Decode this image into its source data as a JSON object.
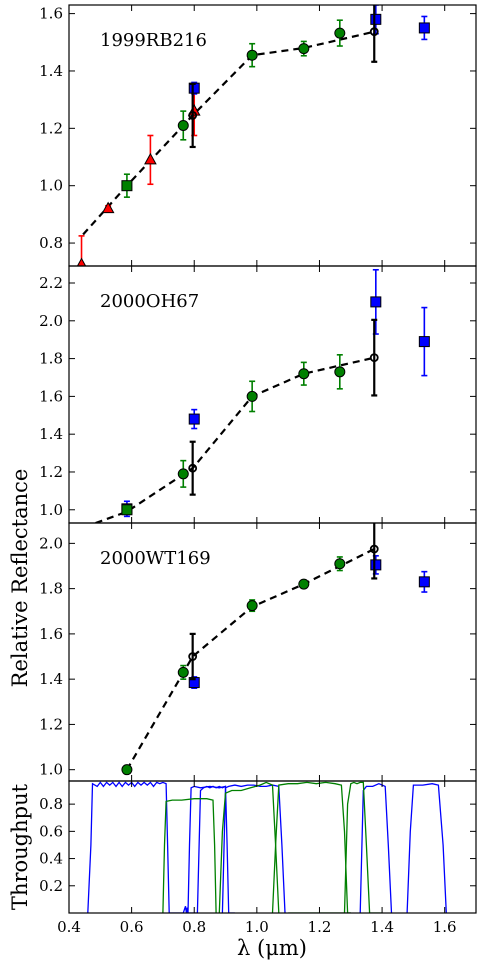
{
  "figure": {
    "ylabel_shared": "Relative Reflectance",
    "xlabel": "λ (μm)"
  },
  "chart_data": [
    {
      "type": "scatter",
      "label": "1999RB216",
      "xlim": [
        0.4,
        1.7
      ],
      "ylim": [
        0.72,
        1.63
      ],
      "yticks": [
        0.8,
        1.0,
        1.2,
        1.4,
        1.6
      ],
      "ytick_labels": [
        "0.8",
        "1.0",
        "1.2",
        "1.4",
        "1.6"
      ],
      "dashed_line": {
        "x": [
          0.445,
          0.585,
          0.795,
          0.985,
          1.15,
          1.375
        ],
        "y": [
          0.83,
          1.0,
          1.245,
          1.455,
          1.48,
          1.537
        ]
      },
      "groups": [
        {
          "marker": "triangle",
          "color": "#ff0000",
          "errcolor": "#ff0000",
          "x": [
            0.44,
            0.525,
            0.66,
            0.8
          ],
          "y": [
            0.725,
            0.92,
            1.09,
            1.26
          ],
          "err": [
            0.1,
            0.01,
            0.085,
            0.085
          ]
        },
        {
          "marker": "square",
          "color": "#008000",
          "errcolor": "#008000",
          "x": [
            0.585
          ],
          "y": [
            1.0
          ],
          "err": [
            0.04
          ]
        },
        {
          "marker": "circle",
          "color": "#008000",
          "errcolor": "#008000",
          "x": [
            0.765,
            0.985,
            1.15,
            1.265
          ],
          "y": [
            1.21,
            1.455,
            1.478,
            1.532
          ],
          "err": [
            0.05,
            0.04,
            0.025,
            0.045
          ]
        },
        {
          "marker": "square",
          "color": "#0000ff",
          "errcolor": "#0000ff",
          "x": [
            0.8,
            1.38,
            1.535
          ],
          "y": [
            1.34,
            1.58,
            1.55
          ],
          "err": [
            0.02,
            0.05,
            0.04
          ]
        },
        {
          "marker": "open-circle",
          "color": "#000000",
          "errcolor": "#000000",
          "x": [
            0.795,
            1.375
          ],
          "y": [
            1.245,
            1.537
          ],
          "err": [
            0.11,
            0.105
          ]
        }
      ]
    },
    {
      "type": "scatter",
      "label": "2000OH67",
      "xlim": [
        0.4,
        1.7
      ],
      "ylim": [
        0.93,
        2.29
      ],
      "yticks": [
        1.0,
        1.2,
        1.4,
        1.6,
        1.8,
        2.0,
        2.2
      ],
      "ytick_labels": [
        "1.0",
        "1.2",
        "1.4",
        "1.6",
        "1.8",
        "2.0",
        "2.2"
      ],
      "dashed_line": {
        "x": [
          0.485,
          0.585,
          0.795,
          0.985,
          1.15,
          1.375
        ],
        "y": [
          0.93,
          0.99,
          1.22,
          1.6,
          1.72,
          1.805
        ]
      },
      "groups": [
        {
          "marker": "square",
          "color": "#0000ff",
          "errcolor": "#0000ff",
          "x": [
            0.585
          ],
          "y": [
            1.005
          ],
          "err": [
            0.04
          ]
        },
        {
          "marker": "square",
          "color": "#008000",
          "errcolor": "#008000",
          "x": [
            0.585
          ],
          "y": [
            1.0
          ],
          "err": [
            0.02
          ]
        },
        {
          "marker": "circle",
          "color": "#008000",
          "errcolor": "#008000",
          "x": [
            0.765,
            0.985,
            1.15,
            1.265
          ],
          "y": [
            1.19,
            1.6,
            1.72,
            1.73
          ],
          "err": [
            0.07,
            0.08,
            0.06,
            0.09
          ]
        },
        {
          "marker": "square",
          "color": "#0000ff",
          "errcolor": "#0000ff",
          "x": [
            0.8,
            1.38,
            1.535
          ],
          "y": [
            1.48,
            2.1,
            1.89
          ],
          "err": [
            0.05,
            0.17,
            0.18
          ]
        },
        {
          "marker": "open-circle",
          "color": "#000000",
          "errcolor": "#000000",
          "x": [
            0.795,
            1.375
          ],
          "y": [
            1.22,
            1.805
          ],
          "err": [
            0.14,
            0.2
          ]
        }
      ]
    },
    {
      "type": "scatter",
      "label": "2000WT169",
      "xlim": [
        0.4,
        1.7
      ],
      "ylim": [
        0.95,
        2.09
      ],
      "yticks": [
        1.0,
        1.2,
        1.4,
        1.6,
        1.8,
        2.0
      ],
      "ytick_labels": [
        "1.0",
        "1.2",
        "1.4",
        "1.6",
        "1.8",
        "2.0"
      ],
      "dashed_line": {
        "x": [
          0.585,
          0.795,
          0.985,
          1.15,
          1.375
        ],
        "y": [
          1.0,
          1.5,
          1.72,
          1.82,
          1.975
        ]
      },
      "groups": [
        {
          "marker": "circle",
          "color": "#008000",
          "errcolor": "#008000",
          "x": [
            0.585,
            0.765,
            0.985,
            1.15,
            1.265
          ],
          "y": [
            1.0,
            1.43,
            1.725,
            1.82,
            1.91
          ],
          "err": [
            0.015,
            0.03,
            0.025,
            0.015,
            0.03
          ]
        },
        {
          "marker": "square",
          "color": "#0000ff",
          "errcolor": "#0000ff",
          "x": [
            0.8,
            1.38,
            1.535
          ],
          "y": [
            1.385,
            1.905,
            1.83
          ],
          "err": [
            0.025,
            0.04,
            0.045
          ]
        },
        {
          "marker": "open-circle",
          "color": "#000000",
          "errcolor": "#000000",
          "x": [
            0.795,
            1.375
          ],
          "y": [
            1.5,
            1.975
          ],
          "err": [
            0.1,
            0.13
          ]
        }
      ]
    },
    {
      "type": "line",
      "ylabel": "Throughput",
      "xlim": [
        0.4,
        1.7
      ],
      "ylim": [
        0.0,
        0.97
      ],
      "xticks": [
        0.4,
        0.6,
        0.8,
        1.0,
        1.2,
        1.4,
        1.6
      ],
      "xtick_labels": [
        "0.4",
        "0.6",
        "0.8",
        "1.0",
        "1.2",
        "1.4",
        "1.6"
      ],
      "yticks": [
        0.2,
        0.4,
        0.6,
        0.8
      ],
      "ytick_labels": [
        "0.2",
        "0.4",
        "0.6",
        "0.8"
      ],
      "series": [
        {
          "color": "#0000ff",
          "x": [
            0.46,
            0.47,
            0.475,
            0.49,
            0.5,
            0.51,
            0.52,
            0.53,
            0.54,
            0.55,
            0.56,
            0.57,
            0.58,
            0.59,
            0.6,
            0.61,
            0.62,
            0.63,
            0.64,
            0.65,
            0.66,
            0.67,
            0.68,
            0.69,
            0.7,
            0.71,
            0.715,
            0.72,
            0.73,
            0.74,
            0.75,
            0.765,
            0.772,
            0.775,
            0.778,
            0.78,
            0.79,
            0.8,
            0.81,
            0.82,
            0.83,
            0.84,
            0.85,
            0.86,
            0.87,
            0.88,
            0.89,
            0.9,
            0.905,
            0.91,
            0.92,
            0.93
          ],
          "y": [
            0.0,
            0.5,
            0.95,
            0.93,
            0.96,
            0.93,
            0.96,
            0.94,
            0.96,
            0.93,
            0.96,
            0.93,
            0.96,
            0.94,
            0.96,
            0.93,
            0.96,
            0.94,
            0.96,
            0.94,
            0.96,
            0.93,
            0.96,
            0.95,
            0.96,
            0.95,
            0.5,
            0.0,
            0.0,
            0.0,
            0.0,
            0.0,
            0.05,
            0.0,
            0.04,
            0.0,
            0.0,
            0.0,
            0.0,
            0.9,
            0.92,
            0.93,
            0.92,
            0.93,
            0.92,
            0.93,
            0.92,
            0.93,
            0.5,
            0.0,
            0.0,
            0.0
          ]
        },
        {
          "color": "#0000ff",
          "x": [
            0.78,
            0.785,
            0.79,
            0.8,
            0.82,
            0.85,
            0.88,
            0.9
          ],
          "y": [
            0.0,
            0.5,
            0.92,
            0.93,
            0.92,
            0.93,
            0.92,
            0.93
          ]
        },
        {
          "color": "#0000ff",
          "x": [
            0.89,
            0.9,
            0.91,
            0.93,
            0.95,
            0.97,
            0.99,
            1.01,
            1.03,
            1.05,
            1.07,
            1.08,
            1.09
          ],
          "y": [
            0.0,
            0.92,
            0.93,
            0.94,
            0.93,
            0.94,
            0.94,
            0.93,
            0.93,
            0.94,
            0.93,
            0.5,
            0.0
          ]
        },
        {
          "color": "#0000ff",
          "x": [
            1.33,
            1.34,
            1.35,
            1.37,
            1.39,
            1.41,
            1.42,
            1.43
          ],
          "y": [
            0.0,
            0.9,
            0.93,
            0.93,
            0.95,
            0.93,
            0.5,
            0.0
          ]
        },
        {
          "color": "#0000ff",
          "x": [
            1.48,
            1.49,
            1.5,
            1.53,
            1.56,
            1.58,
            1.595,
            1.605
          ],
          "y": [
            0.0,
            0.6,
            0.94,
            0.94,
            0.95,
            0.94,
            0.5,
            0.0
          ]
        },
        {
          "color": "#008000",
          "x": [
            0.7,
            0.705,
            0.71,
            0.73,
            0.76,
            0.8,
            0.84,
            0.86,
            0.865,
            0.87
          ],
          "y": [
            0.0,
            0.5,
            0.82,
            0.83,
            0.83,
            0.84,
            0.84,
            0.83,
            0.5,
            0.0
          ]
        },
        {
          "color": "#008000",
          "x": [
            0.88,
            0.89,
            0.9,
            0.92,
            0.95,
            0.98,
            1.01,
            1.03,
            1.05,
            1.06,
            1.07
          ],
          "y": [
            0.0,
            0.6,
            0.88,
            0.9,
            0.9,
            0.92,
            0.94,
            0.96,
            0.94,
            0.5,
            0.0
          ]
        },
        {
          "color": "#008000",
          "x": [
            1.05,
            1.06,
            1.07,
            1.1,
            1.13,
            1.16,
            1.19,
            1.22,
            1.25,
            1.27,
            1.28,
            1.29,
            1.3
          ],
          "y": [
            0.0,
            0.5,
            0.94,
            0.95,
            0.95,
            0.96,
            0.95,
            0.96,
            0.95,
            0.94,
            0.6,
            0.0,
            0.0
          ]
        },
        {
          "color": "#008000",
          "x": [
            1.28,
            1.29,
            1.3,
            1.31,
            1.32,
            1.33,
            1.34,
            1.35,
            1.36,
            1.37,
            1.38,
            1.39,
            1.4
          ],
          "y": [
            0.0,
            0.8,
            0.95,
            0.96,
            0.95,
            0.96,
            0.96,
            0.5,
            0.0,
            0.0,
            0.0,
            0.0,
            0.0
          ]
        },
        {
          "color": "#008000",
          "x": [
            1.1,
            1.15,
            1.2,
            1.25,
            1.3
          ],
          "y": [
            0.0,
            0.0,
            0.0,
            0.0,
            0.0
          ]
        }
      ]
    }
  ]
}
